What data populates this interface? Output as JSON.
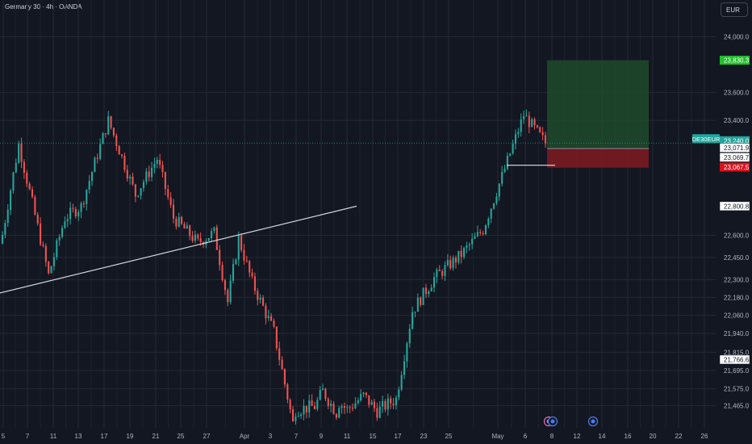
{
  "title": "Germany 30 · 4h · OANDA",
  "currency_button": "EUR",
  "colors": {
    "background": "#131722",
    "grid": "#242832",
    "up": "#26a69a",
    "down": "#ef5350",
    "trendline": "#d1d4dc",
    "profit_zone": "#1e4a2c",
    "loss_zone": "#7a1a20",
    "tag_green": "#22c02a",
    "tag_teal": "#22a59b",
    "tag_gray": "#6a6d78",
    "tag_red": "#d8141d"
  },
  "chart_data": {
    "type": "candlestick",
    "symbol": "DE30EUR",
    "interval": "4h",
    "y_scale": "log",
    "ylim": [
      21400,
      24150
    ],
    "y_tick_labels": [
      "24,000.0",
      "23,600.0",
      "23,400.0",
      "22,600.0",
      "22,450.0",
      "22,300.0",
      "22,180.0",
      "22,060.0",
      "21,940.0",
      "21,815.0",
      "21,695.0",
      "21,575.0",
      "21,465.0"
    ],
    "y_tick_values": [
      24000,
      23600,
      23400,
      22600,
      22450,
      22300,
      22180,
      22060,
      21940,
      21815,
      21695,
      21575,
      21465
    ],
    "x_tick_labels": [
      "5",
      "7",
      "11",
      "13",
      "17",
      "19",
      "21",
      "25",
      "27",
      "Apr",
      "3",
      "7",
      "9",
      "11",
      "15",
      "17",
      "23",
      "25",
      "May",
      "6",
      "8",
      "12",
      "14",
      "16",
      "20",
      "22",
      "26"
    ],
    "price_tags": [
      {
        "label": "23,830.3",
        "value": 23830.3,
        "style": "tag_green"
      },
      {
        "label": "DE30EUR",
        "value": 23240.0,
        "style": "symbol"
      },
      {
        "label": "23,240.0",
        "value": 23240.0,
        "style": "tag_teal"
      },
      {
        "label": "23,202.1",
        "value": 23202.1,
        "style": "tag_gray"
      },
      {
        "label": "23,071.9",
        "value": 23071.9,
        "style": "tag_white"
      },
      {
        "label": "23,069.7",
        "value": 23069.7,
        "style": "tag_white"
      },
      {
        "label": "23,067.5",
        "value": 23067.5,
        "style": "tag_red"
      },
      {
        "label": "22,800.8",
        "value": 22800.8,
        "style": "tag_white"
      },
      {
        "label": "21,766.6",
        "value": 21766.6,
        "style": "tag_white"
      }
    ],
    "position": {
      "type": "long",
      "entry": 23202.1,
      "target": 23830.3,
      "stop": 23067.5
    },
    "current_price": 23240.0,
    "horizontal_level": 23085,
    "trendline": {
      "start_price": 22210,
      "end_price": 22800.8
    },
    "segments": [
      {
        "from": 22500,
        "to": 23230,
        "n": 7
      },
      {
        "from": 23230,
        "to": 22330,
        "n": 11
      },
      {
        "from": 22330,
        "to": 22720,
        "n": 6
      },
      {
        "from": 22720,
        "to": 22800,
        "n": 6
      },
      {
        "from": 22800,
        "to": 23400,
        "n": 10
      },
      {
        "from": 23400,
        "to": 22880,
        "n": 10
      },
      {
        "from": 22880,
        "to": 23130,
        "n": 8
      },
      {
        "from": 23130,
        "to": 22720,
        "n": 6
      },
      {
        "from": 22720,
        "to": 22550,
        "n": 9
      },
      {
        "from": 22550,
        "to": 22620,
        "n": 6
      },
      {
        "from": 22620,
        "to": 22150,
        "n": 5
      },
      {
        "from": 22150,
        "to": 22580,
        "n": 4
      },
      {
        "from": 22580,
        "to": 22280,
        "n": 5
      },
      {
        "from": 22280,
        "to": 21950,
        "n": 8
      },
      {
        "from": 21950,
        "to": 21350,
        "n": 7
      },
      {
        "from": 21500,
        "to": 21440,
        "n": 1
      },
      {
        "from": 21440,
        "to": 21460,
        "n": 7
      },
      {
        "from": 21460,
        "to": 21560,
        "n": 3
      },
      {
        "from": 21560,
        "to": 21420,
        "n": 5
      },
      {
        "from": 21500,
        "to": 21440,
        "n": 4
      },
      {
        "from": 21440,
        "to": 21530,
        "n": 6
      },
      {
        "from": 21530,
        "to": 21430,
        "n": 5
      },
      {
        "from": 21430,
        "to": 21510,
        "n": 7
      },
      {
        "from": 21510,
        "to": 22090,
        "n": 6
      },
      {
        "from": 22090,
        "to": 22310,
        "n": 8
      },
      {
        "from": 22310,
        "to": 22470,
        "n": 10
      },
      {
        "from": 22470,
        "to": 22640,
        "n": 8
      },
      {
        "from": 22640,
        "to": 23060,
        "n": 8
      },
      {
        "from": 23060,
        "to": 23440,
        "n": 7
      },
      {
        "from": 23440,
        "to": 23240,
        "n": 8
      }
    ]
  }
}
